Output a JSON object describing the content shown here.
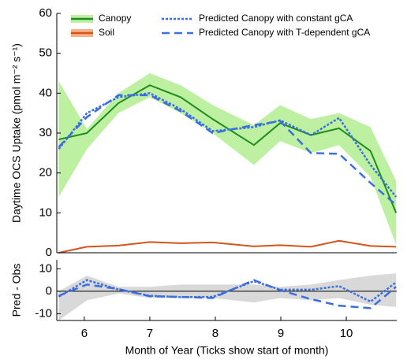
{
  "chart_data": [
    {
      "type": "line",
      "ylabel": "Daytime OCS Uptake (pmol m⁻² s⁻¹)",
      "x": [
        5.61,
        6.04,
        6.52,
        7.0,
        7.47,
        7.96,
        8.59,
        8.99,
        9.46,
        9.89,
        10.37,
        10.76
      ],
      "xlim": [
        5.58,
        10.77
      ],
      "ylim": [
        0,
        60
      ],
      "yticks": [
        0,
        10,
        20,
        30,
        40,
        50,
        60
      ],
      "series": [
        {
          "name": "Canopy",
          "color": "#1e8c1e",
          "dash": "solid",
          "band_color": "#bdf0a0",
          "values": [
            28.4,
            30,
            37.5,
            42,
            39,
            33.5,
            27,
            32.5,
            29.5,
            31.2,
            25.5,
            10
          ],
          "band_upper": [
            43,
            31,
            40,
            45,
            42,
            37,
            32,
            37,
            33.5,
            35,
            31.5,
            18
          ],
          "band_lower": [
            14,
            26,
            35,
            39,
            35,
            30,
            22,
            28,
            25,
            27,
            19,
            2
          ]
        },
        {
          "name": "Soil",
          "color": "#d6531a",
          "dash": "solid",
          "band_color": "#f4b38a",
          "values": [
            0,
            1.5,
            1.8,
            2.7,
            2.4,
            2.6,
            1.6,
            1.9,
            1.5,
            3.0,
            1.7,
            1.5
          ]
        },
        {
          "name": "Predicted Canopy with constant gCA",
          "color": "#3b6fe0",
          "dash": "dot",
          "values": [
            26,
            35,
            39,
            40,
            36,
            30.5,
            31.5,
            33.2,
            29.5,
            33.8,
            22,
            14
          ]
        },
        {
          "name": "Predicted Canopy with T-dependent gCA",
          "color": "#3b6fe0",
          "dash": "dash",
          "values": [
            26.5,
            34,
            39.5,
            39.5,
            35.5,
            30,
            32,
            33,
            25,
            24.8,
            17.5,
            12
          ]
        }
      ]
    },
    {
      "type": "line",
      "ylabel": "Pred - Obs",
      "xlabel": "Month of Year (Ticks show start of month)",
      "x": [
        5.61,
        6.04,
        6.52,
        7.0,
        7.47,
        7.96,
        8.59,
        8.99,
        9.46,
        9.89,
        10.37,
        10.76
      ],
      "xlim": [
        5.58,
        10.77
      ],
      "xticks": [
        6,
        7,
        8,
        9,
        10
      ],
      "ylim": [
        -13,
        14
      ],
      "yticks": [
        -10,
        0,
        10
      ],
      "zero_line": true,
      "band": {
        "color": "#d9d9d9",
        "upper": [
          0,
          7,
          2,
          2,
          3,
          3,
          3,
          2,
          3,
          5,
          7,
          8
        ],
        "lower": [
          -13,
          -4,
          -1,
          -3,
          -3,
          -3,
          -5,
          -3,
          -4,
          -3,
          -6,
          -7
        ]
      },
      "series": [
        {
          "color": "#3b6fe0",
          "dash": "dot",
          "values": [
            -2.4,
            5,
            0.8,
            -2,
            -2.6,
            -2.5,
            4.5,
            0.7,
            0.7,
            2.3,
            -4.6,
            4
          ]
        },
        {
          "color": "#3b6fe0",
          "dash": "dash",
          "values": [
            -2,
            3,
            1,
            -2.2,
            -2.5,
            -3,
            5,
            0.5,
            -3.5,
            -6.4,
            -7.5,
            2
          ]
        }
      ]
    }
  ]
}
